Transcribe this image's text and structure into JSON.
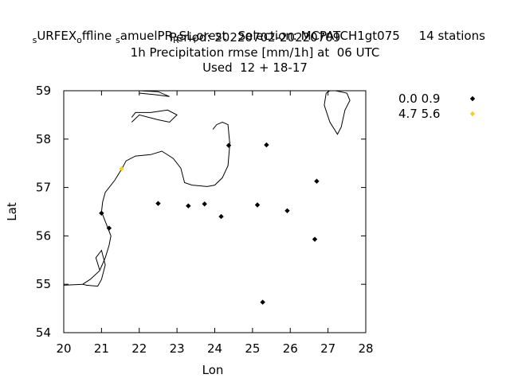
{
  "title": {
    "segments": [
      {
        "text": "s",
        "sub": true
      },
      {
        "text": "URFEX",
        "sub": false
      },
      {
        "text": "o",
        "sub": true
      },
      {
        "text": "ffline ",
        "sub": false
      },
      {
        "text": "s",
        "sub": true
      },
      {
        "text": "amuelPR",
        "sub": false
      },
      {
        "text": "R",
        "sub": true
      },
      {
        "text": "SL",
        "sub": false
      },
      {
        "text": "f",
        "sub": true
      },
      {
        "text": "orest   Selection: MCPATCH1gt075     14 stations",
        "sub": false
      }
    ],
    "line2": "Period: 20220702-20220709",
    "line3": "1h Precipitation rmse [mm/1h] at  06 UTC",
    "line4": "Used  12 + 18-17"
  },
  "chart_data": {
    "type": "scatter",
    "xlabel": "Lon",
    "ylabel": "Lat",
    "xlim": [
      20,
      28
    ],
    "ylim": [
      54,
      59
    ],
    "xticks": [
      20,
      21,
      22,
      23,
      24,
      25,
      26,
      27,
      28
    ],
    "yticks": [
      54,
      55,
      56,
      57,
      58,
      59
    ],
    "grid": false,
    "legend_position": "top-right outside",
    "series": [
      {
        "name": "0.0 0.9",
        "color": "#000000",
        "marker": "diamond",
        "points": [
          {
            "x": 21.0,
            "y": 56.47
          },
          {
            "x": 21.2,
            "y": 56.16
          },
          {
            "x": 22.5,
            "y": 56.67
          },
          {
            "x": 23.3,
            "y": 56.62
          },
          {
            "x": 23.73,
            "y": 56.66
          },
          {
            "x": 24.17,
            "y": 56.4
          },
          {
            "x": 24.37,
            "y": 57.87
          },
          {
            "x": 25.13,
            "y": 56.64
          },
          {
            "x": 25.37,
            "y": 57.88
          },
          {
            "x": 25.92,
            "y": 56.52
          },
          {
            "x": 26.7,
            "y": 57.13
          },
          {
            "x": 26.65,
            "y": 55.93
          },
          {
            "x": 25.27,
            "y": 54.63
          }
        ]
      },
      {
        "name": "4.7 5.6",
        "color": "#f5d21e",
        "marker": "diamond",
        "points": [
          {
            "x": 21.53,
            "y": 57.39
          }
        ]
      }
    ],
    "coastlines": [
      [
        [
          20.0,
          54.98
        ],
        [
          20.5,
          55.0
        ],
        [
          20.7,
          55.1
        ],
        [
          20.95,
          55.28
        ],
        [
          21.1,
          55.55
        ],
        [
          21.2,
          55.8
        ],
        [
          21.25,
          56.0
        ],
        [
          21.1,
          56.3
        ],
        [
          21.0,
          56.5
        ],
        [
          21.03,
          56.7
        ],
        [
          21.1,
          56.9
        ],
        [
          21.35,
          57.15
        ],
        [
          21.55,
          57.4
        ],
        [
          21.65,
          57.55
        ],
        [
          21.9,
          57.65
        ],
        [
          22.3,
          57.68
        ],
        [
          22.6,
          57.75
        ],
        [
          22.9,
          57.6
        ],
        [
          23.1,
          57.4
        ],
        [
          23.2,
          57.1
        ],
        [
          23.4,
          57.05
        ],
        [
          23.8,
          57.02
        ],
        [
          24.0,
          57.05
        ],
        [
          24.2,
          57.2
        ],
        [
          24.35,
          57.45
        ],
        [
          24.4,
          57.9
        ],
        [
          24.35,
          58.3
        ],
        [
          24.2,
          58.35
        ],
        [
          24.05,
          58.3
        ],
        [
          23.95,
          58.2
        ]
      ],
      [
        [
          20.95,
          55.3
        ],
        [
          20.85,
          55.55
        ],
        [
          21.0,
          55.7
        ],
        [
          21.1,
          55.4
        ],
        [
          21.0,
          55.1
        ],
        [
          20.9,
          54.96
        ],
        [
          20.6,
          54.98
        ],
        [
          20.5,
          55.0
        ]
      ],
      [
        [
          21.8,
          58.35
        ],
        [
          22.0,
          58.5
        ],
        [
          22.5,
          58.4
        ],
        [
          22.8,
          58.35
        ],
        [
          23.0,
          58.5
        ],
        [
          22.75,
          58.6
        ],
        [
          22.3,
          58.55
        ],
        [
          21.9,
          58.55
        ],
        [
          21.8,
          58.45
        ]
      ],
      [
        [
          22.0,
          58.95
        ],
        [
          22.4,
          58.92
        ],
        [
          22.8,
          58.88
        ],
        [
          22.5,
          58.98
        ],
        [
          22.0,
          59.0
        ]
      ],
      [
        [
          27.2,
          59.0
        ],
        [
          27.5,
          58.95
        ],
        [
          27.58,
          58.8
        ],
        [
          27.45,
          58.6
        ],
        [
          27.35,
          58.25
        ],
        [
          27.25,
          58.1
        ],
        [
          27.05,
          58.35
        ],
        [
          26.9,
          58.7
        ],
        [
          26.95,
          58.95
        ],
        [
          27.05,
          59.0
        ]
      ]
    ]
  }
}
